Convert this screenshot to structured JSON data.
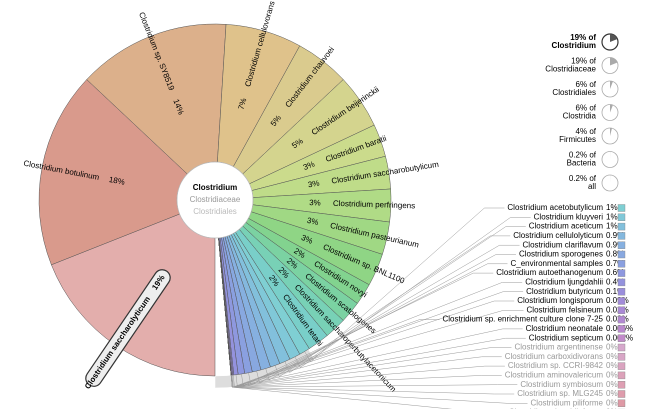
{
  "chart_data": {
    "type": "pie",
    "center_labels": [
      "Clostridium",
      "Clostridiaceae",
      "Clostridiales"
    ],
    "labeled": {
      "categories": [
        "Clostridium saccharolyticum",
        "Clostridium botulinum",
        "Clostridium sp. SY8519",
        "Clostridium cellulovorans",
        "Clostridium chauvoei",
        "Clostridium beijerinckii",
        "Clostridium baratii",
        "Clostridium saccharobutylicum",
        "Clostridium perfringens",
        "Clostridium pasteurianum",
        "Clostridium sp. BNL1100",
        "Clostridium novyi",
        "Clostridium scatologenes",
        "Clostridium saccharoperbutylacetonicum",
        "Clostridium tetani"
      ],
      "values": [
        19,
        18,
        14,
        7,
        5,
        5,
        3,
        3,
        3,
        3,
        3,
        2,
        2,
        2,
        2
      ],
      "value_labels": [
        "19%",
        "18%",
        "14%",
        "7%",
        "5%",
        "5%",
        "3%",
        "3%",
        "3%",
        "3%",
        "3%",
        "2%",
        "2%",
        "2%",
        "2%"
      ],
      "colors": [
        "#e3aeac",
        "#d99a8c",
        "#dcb08b",
        "#dfc28b",
        "#dacb8e",
        "#d4d48e",
        "#cbdb8c",
        "#bfdc89",
        "#b0db86",
        "#a0d884",
        "#8fd585",
        "#82d38f",
        "#7bd2a2",
        "#78d1b6",
        "#79cfc9"
      ]
    },
    "listed": {
      "categories": [
        "Clostridium acetobutylicum",
        "Clostridium kluyveri",
        "Clostridium aceticum",
        "Clostridium cellulolyticum",
        "Clostridium clariflavum",
        "Clostridium sporogenes",
        "C_environmental samples",
        "Clostridium autoethanogenum",
        "Clostridium ljungdahlii",
        "Clostridium butyricum",
        "Clostridium longisporum",
        "Clostridium felsineum",
        "Clostridium sp. enrichment culture clone 7-25",
        "Clostridium neonatale",
        "Clostridium septicum",
        "Clostridium argentinense",
        "Clostridium carboxidivorans",
        "Clostridium sp. CCRI-9842",
        "Clostridium aminovalericum",
        "Clostridium symbiosum",
        "Clostridium sp. MLG245",
        "Clostridium piliforme",
        "Clostridium clostridioforme"
      ],
      "values": [
        1,
        1,
        1,
        0.9,
        0.9,
        0.8,
        0.7,
        0.6,
        0.4,
        0.1,
        0.09,
        0.02,
        0.02,
        0.006,
        0.002,
        0,
        0,
        0,
        0,
        0,
        0,
        0,
        0
      ],
      "value_labels": [
        "1%",
        "1%",
        "1%",
        "0.9%",
        "0.9%",
        "0.8%",
        "0.7%",
        "0.6%",
        "0.4%",
        "0.1%",
        "0.09%",
        "0.02%",
        "0.02%",
        "0.006%",
        "0.002%",
        "0%",
        "0%",
        "0%",
        "0%",
        "0%",
        "0%",
        "0%",
        "0%"
      ],
      "colors": [
        "#7fcfd3",
        "#80c8d8",
        "#82c0dc",
        "#84b8de",
        "#86b0e0",
        "#88a8e0",
        "#8aa0e0",
        "#8e98df",
        "#9492dd",
        "#9a8edb",
        "#a28bd8",
        "#aa8ad5",
        "#b28ad2",
        "#ba8ace",
        "#c28bca",
        "#d6a8cc",
        "#d8a6c6",
        "#daa4c0",
        "#dca2ba",
        "#de9fb3",
        "#de9cac",
        "#de99a5",
        "#de969e"
      ]
    },
    "breadcrumbs": [
      {
        "percent_label": "19% of",
        "value": 19,
        "name": "Clostridium"
      },
      {
        "percent_label": "19% of",
        "value": 19,
        "name": "Clostridiaceae"
      },
      {
        "percent_label": "6% of",
        "value": 6,
        "name": "Clostridiales"
      },
      {
        "percent_label": "6% of",
        "value": 6,
        "name": "Clostridia"
      },
      {
        "percent_label": "4% of",
        "value": 4,
        "name": "Firmicutes"
      },
      {
        "percent_label": "0.2% of",
        "value": 0.2,
        "name": "Bacteria"
      },
      {
        "percent_label": "0.2% of",
        "value": 0.2,
        "name": "all"
      }
    ]
  }
}
